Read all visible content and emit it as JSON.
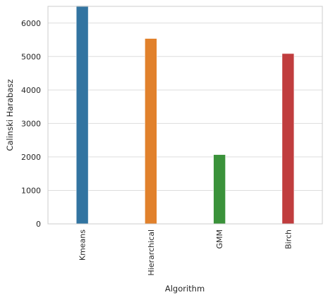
{
  "chart_data": {
    "type": "bar",
    "title": "",
    "xlabel": "Algorithm",
    "ylabel": "Calinski Harabasz",
    "categories": [
      "Kmeans",
      "Hierarchical",
      "GMM",
      "Birch"
    ],
    "values": [
      6520,
      5540,
      2070,
      5090
    ],
    "colors": [
      "#3274a1",
      "#e1812c",
      "#3a923a",
      "#c03d3e"
    ],
    "ylim": [
      0,
      6500
    ],
    "yticks": [
      0,
      1000,
      2000,
      3000,
      4000,
      5000,
      6000
    ],
    "grid": true,
    "grid_axis": "y",
    "legend": "none"
  }
}
